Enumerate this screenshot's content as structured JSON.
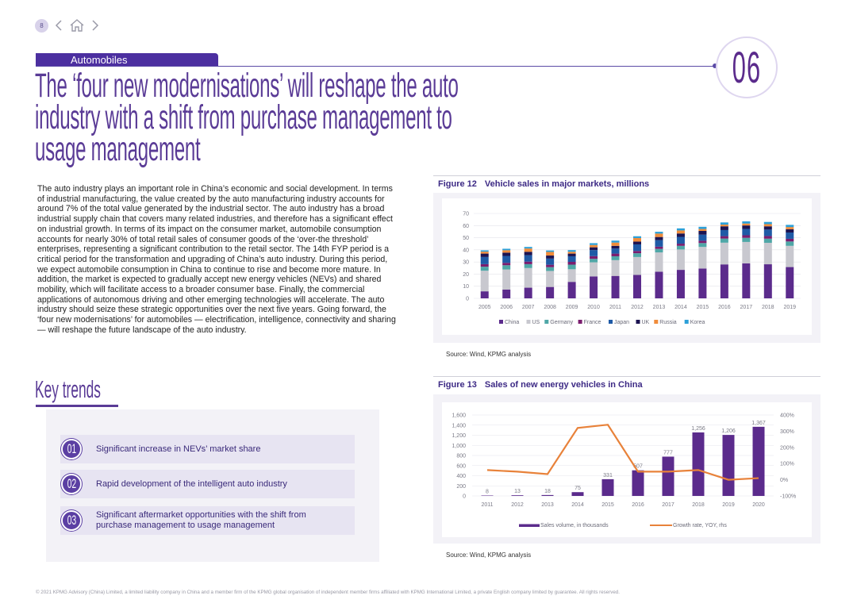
{
  "nav": {
    "page_number": "8"
  },
  "section": {
    "label": "Automobiles",
    "chapter_number": "06"
  },
  "title": "The ‘four new modernisations’ will reshape the auto industry with a shift from purchase management to usage management",
  "body_text": "The auto industry plays an important role in China’s economic and social development. In terms of industrial manufacturing, the value created by the auto manufacturing industry accounts for around 7% of the total value generated by the industrial sector. The auto industry has a broad industrial supply chain that covers many related industries, and therefore has a significant effect on industrial growth. In terms of its impact on the consumer market, automobile consumption accounts for nearly 30% of total retail sales of consumer goods of the ‘over-the threshold’ enterprises, representing a significant contribution to the retail sector. The 14th FYP period is a critical period for the transformation and upgrading of China’s auto industry. During this period, we expect automobile consumption in China to continue to rise and become more mature. In addition, the market is expected to gradually accept new energy vehicles (NEVs) and shared mobility, which will facilitate access to a broader consumer base. Finally, the commercial applications of autonomous driving and other emerging technologies will accelerate. The auto industry should seize these strategic opportunities over the next five years. Going forward, the ‘four new modernisations’ for automobiles — electrification, intelligence, connectivity and sharing — will reshape the future landscape of the auto industry.",
  "key_trends": {
    "title": "Key trends",
    "items": [
      {
        "num": "01",
        "text": "Significant increase in NEVs’ market share"
      },
      {
        "num": "02",
        "text": "Rapid development of the intelligent auto industry"
      },
      {
        "num": "03",
        "text": "Significant aftermarket opportunities with the shift from purchase management to usage management"
      }
    ]
  },
  "figure12": {
    "label": "Figure 12",
    "title": "Vehicle sales in major markets, millions",
    "source": "Source: Wind, KPMG analysis"
  },
  "figure13": {
    "label": "Figure 13",
    "title": "Sales of new energy vehicles in China",
    "source": "Source: Wind, KPMG analysis"
  },
  "footer": "© 2021 KPMG Advisory (China) Limited, a limited liability company in China and a member firm of the KPMG global organisation of independent member firms affiliated with KPMG International Limited, a private English company limited by guarantee. All rights reserved.",
  "chart_data": [
    {
      "type": "bar",
      "stacked": true,
      "title": "Vehicle sales in major markets, millions",
      "categories": [
        "2005",
        "2006",
        "2007",
        "2008",
        "2009",
        "2010",
        "2011",
        "2012",
        "2013",
        "2014",
        "2015",
        "2016",
        "2017",
        "2018",
        "2019"
      ],
      "ylim": [
        0,
        70
      ],
      "yticks": [
        0,
        10,
        20,
        30,
        40,
        50,
        60,
        70
      ],
      "legend_position": "bottom",
      "series": [
        {
          "name": "China",
          "color": "#5b2b8c",
          "values": [
            5.8,
            7.2,
            8.8,
            9.4,
            13.6,
            18.1,
            18.5,
            19.3,
            22.0,
            23.5,
            24.6,
            28.0,
            28.9,
            28.1,
            25.8
          ]
        },
        {
          "name": "US",
          "color": "#c8c8cf",
          "values": [
            17.0,
            16.6,
            16.2,
            13.2,
            10.4,
            11.6,
            13.0,
            14.8,
            15.9,
            16.8,
            17.8,
            17.9,
            17.6,
            17.7,
            17.5
          ]
        },
        {
          "name": "Germany",
          "color": "#4fa7a7",
          "values": [
            3.3,
            3.5,
            3.2,
            3.1,
            3.8,
            2.9,
            3.2,
            3.1,
            2.9,
            3.0,
            3.2,
            3.4,
            3.4,
            3.4,
            3.6
          ]
        },
        {
          "name": "France",
          "color": "#7a1d6f",
          "values": [
            2.1,
            2.0,
            2.1,
            2.0,
            2.3,
            2.2,
            2.2,
            1.9,
            1.8,
            1.8,
            1.9,
            2.0,
            2.1,
            2.2,
            2.2
          ]
        },
        {
          "name": "Japan",
          "color": "#1f5aa6",
          "values": [
            5.9,
            5.7,
            5.3,
            5.1,
            4.6,
            5.0,
            4.2,
            5.4,
            5.4,
            5.6,
            5.0,
            5.0,
            5.2,
            5.3,
            5.2
          ]
        },
        {
          "name": "UK",
          "color": "#1c1452",
          "values": [
            2.8,
            2.7,
            2.8,
            2.5,
            2.2,
            2.3,
            2.2,
            2.3,
            2.6,
            2.8,
            3.1,
            3.1,
            2.9,
            2.7,
            2.7
          ]
        },
        {
          "name": "Russia",
          "color": "#f08c3a",
          "values": [
            1.6,
            2.0,
            2.7,
            3.0,
            1.5,
            1.9,
            2.7,
            2.9,
            2.8,
            2.5,
            1.6,
            1.4,
            1.6,
            1.8,
            1.8
          ]
        },
        {
          "name": "Korea",
          "color": "#2da0d8",
          "values": [
            1.1,
            1.2,
            1.3,
            1.2,
            1.4,
            1.5,
            1.6,
            1.5,
            1.5,
            1.7,
            1.8,
            1.8,
            1.8,
            1.8,
            1.8
          ]
        }
      ]
    },
    {
      "type": "bar-line",
      "title": "Sales of new energy vehicles in China",
      "categories": [
        "2011",
        "2012",
        "2013",
        "2014",
        "2015",
        "2016",
        "2017",
        "2018",
        "2019",
        "2020"
      ],
      "bar_series": {
        "name": "Sales volume, in thousands",
        "color": "#5b2b8c",
        "values": [
          8,
          13,
          18,
          75,
          331,
          507,
          777,
          1256,
          1206,
          1367
        ],
        "labels": [
          "8",
          "13",
          "18",
          "75",
          "331",
          "507",
          "777",
          "1,256",
          "1,206",
          "1,367"
        ]
      },
      "line_series": {
        "name": "Growth rate, YOY, rhs",
        "color": "#e8823a",
        "values": [
          60,
          50,
          35,
          320,
          340,
          50,
          50,
          60,
          0,
          10
        ]
      },
      "ylim_left": [
        0,
        1600
      ],
      "yticks_left": [
        0,
        200,
        400,
        600,
        800,
        1000,
        1200,
        1400,
        1600
      ],
      "ytick_labels_left": [
        "0",
        "200",
        "400",
        "600",
        "800",
        "1,000",
        "1,200",
        "1,400",
        "1,600"
      ],
      "ylim_right": [
        -100,
        400
      ],
      "yticks_right": [
        -100,
        0,
        100,
        200,
        300,
        400
      ],
      "ytick_labels_right": [
        "-100%",
        "0%",
        "100%",
        "200%",
        "300%",
        "400%"
      ],
      "legend_position": "bottom"
    }
  ]
}
